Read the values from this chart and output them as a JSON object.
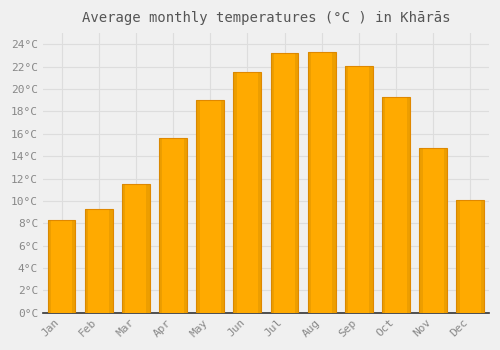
{
  "title": "Average monthly temperatures (°C ) in Khārās",
  "months": [
    "Jan",
    "Feb",
    "Mar",
    "Apr",
    "May",
    "Jun",
    "Jul",
    "Aug",
    "Sep",
    "Oct",
    "Nov",
    "Dec"
  ],
  "values": [
    8.3,
    9.3,
    11.5,
    15.6,
    19.0,
    21.5,
    23.2,
    23.3,
    22.1,
    19.3,
    14.7,
    10.1
  ],
  "bar_color_main": "#FFAA00",
  "bar_color_edge": "#E08800",
  "background_color": "#F0F0F0",
  "grid_color": "#DDDDDD",
  "text_color": "#888888",
  "axis_color": "#333333",
  "ylim": [
    0,
    25
  ],
  "ytick_step": 2,
  "title_fontsize": 10,
  "tick_fontsize": 8,
  "font_family": "monospace",
  "bar_width": 0.75
}
